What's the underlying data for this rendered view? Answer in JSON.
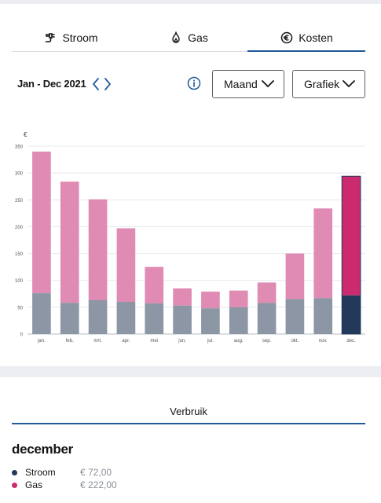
{
  "tabs": [
    {
      "label": "Stroom",
      "icon": "plug-icon",
      "active": false
    },
    {
      "label": "Gas",
      "icon": "flame-icon",
      "active": false
    },
    {
      "label": "Kosten",
      "icon": "euro-icon",
      "active": true
    }
  ],
  "period": {
    "label": "Jan - Dec 2021"
  },
  "controls": {
    "interval": "Maand",
    "view": "Grafiek"
  },
  "colors": {
    "accent": "#1f5c99",
    "stroom": "#8c96a4",
    "gas": "#e08bb3",
    "stroom_selected": "#22395a",
    "gas_selected": "#cc2a6e"
  },
  "chart_data": {
    "type": "bar",
    "stacked": true,
    "ylabel": "€",
    "ylim": [
      0,
      350
    ],
    "yticks": [
      0,
      50,
      100,
      150,
      200,
      250,
      300,
      350
    ],
    "categories": [
      "jan.",
      "feb.",
      "mrt.",
      "apr.",
      "mei",
      "jun.",
      "jul.",
      "aug.",
      "sep.",
      "okt.",
      "nov.",
      "dec."
    ],
    "selected_index": 11,
    "grid": true,
    "series": [
      {
        "name": "Stroom",
        "values": [
          76,
          58,
          63,
          60,
          57,
          53,
          48,
          50,
          58,
          65,
          67,
          72
        ]
      },
      {
        "name": "Gas",
        "values": [
          264,
          226,
          188,
          137,
          68,
          32,
          31,
          31,
          38,
          85,
          167,
          222
        ]
      }
    ]
  },
  "section": {
    "tab": "Verbruik"
  },
  "detail": {
    "month": "december",
    "items": [
      {
        "label": "Stroom",
        "value": "€ 72,00"
      },
      {
        "label": "Gas",
        "value": "€ 222,00"
      }
    ]
  }
}
